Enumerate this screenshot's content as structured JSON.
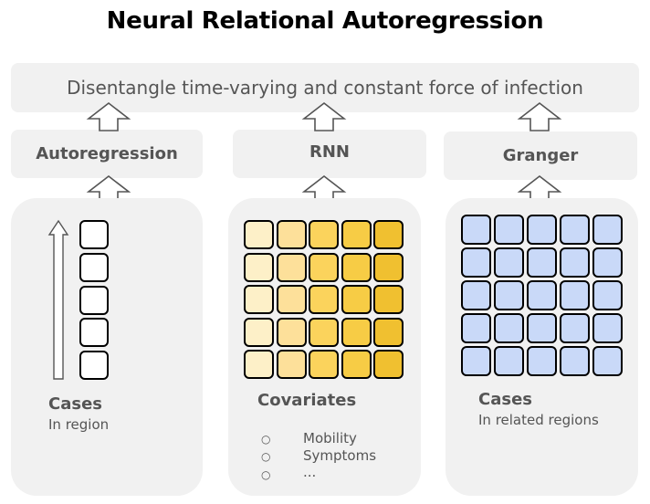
{
  "title": "Neural Relational Autoregression",
  "banner": "Disentangle time-varying and constant force of infection",
  "methods": [
    "Autoregression",
    "RNN",
    "Granger"
  ],
  "panels": [
    {
      "title": "Cases",
      "subtitle": "In region"
    },
    {
      "title": "Covariates",
      "bullets": [
        "Mobility",
        "Symptoms",
        "..."
      ]
    },
    {
      "title": "Cases",
      "subtitle": "In related regions"
    }
  ],
  "colors": {
    "box_fill": "#f1f1f1",
    "covariate_columns": [
      "#fdf0c8",
      "#fde09a",
      "#fbd35c",
      "#f7cc45",
      "#f0c030"
    ],
    "related_cells": "#c9d9f8",
    "cell_white": "#ffffff",
    "cell_border": "#000000"
  },
  "bullet_marker": "○"
}
